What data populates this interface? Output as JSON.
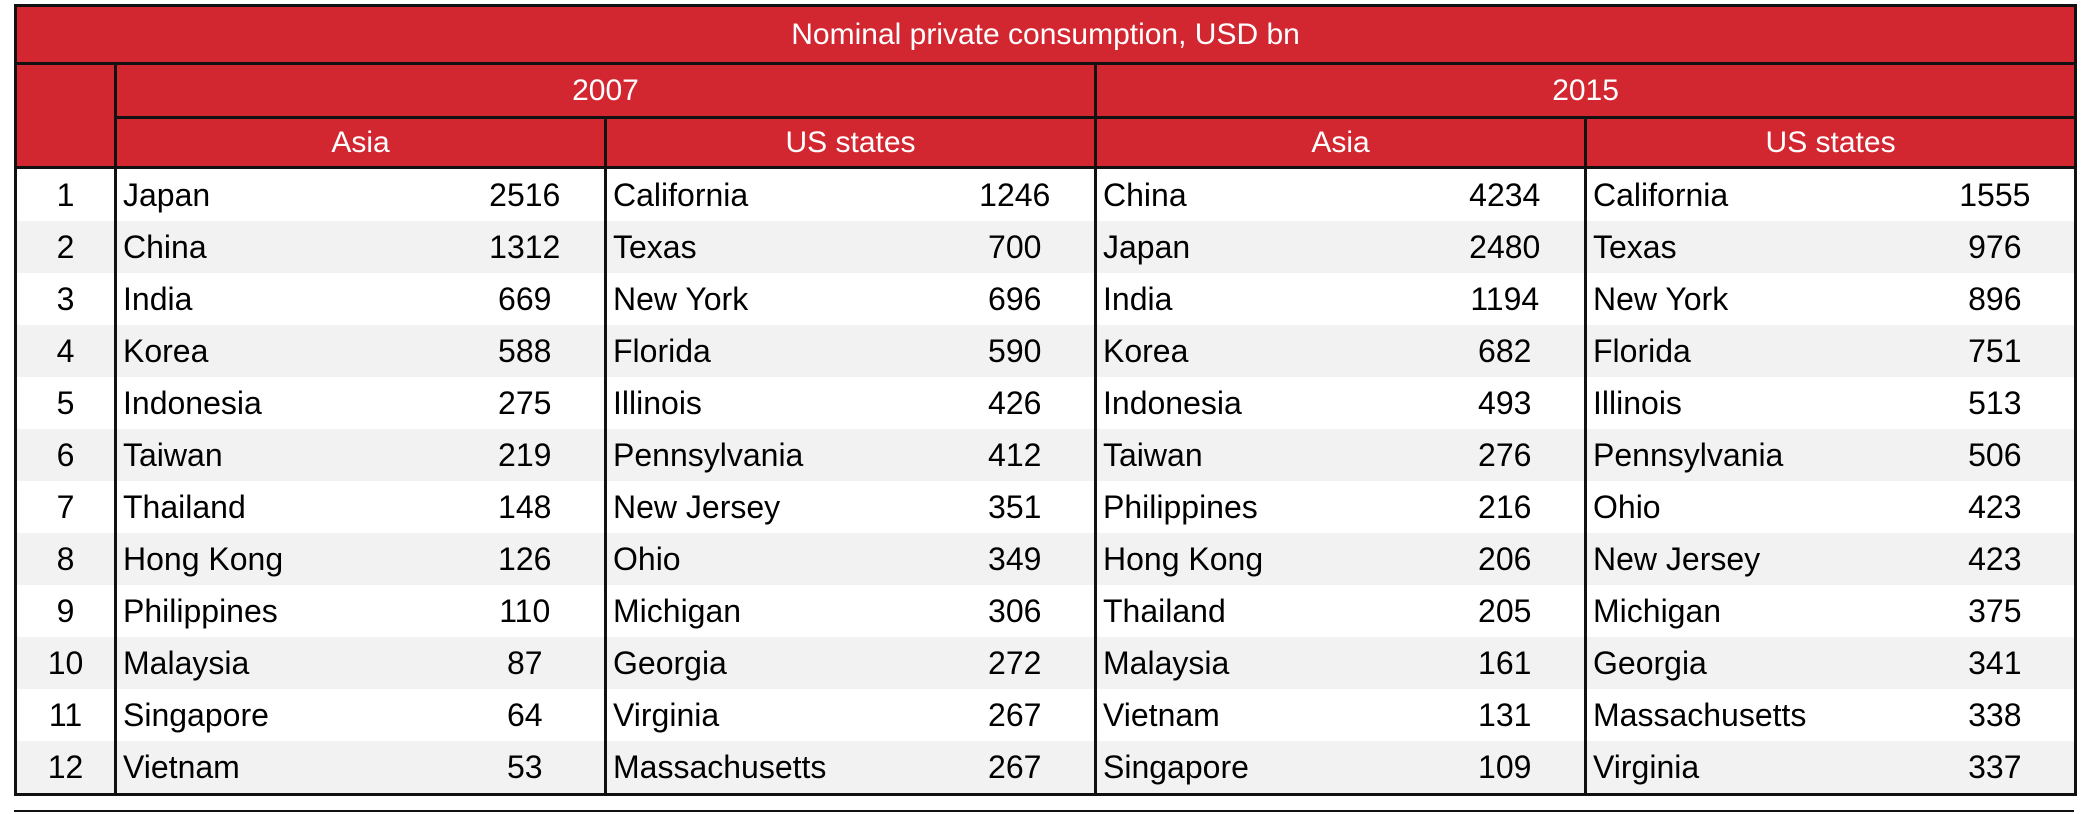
{
  "chart_data": {
    "type": "table",
    "title": "Nominal private consumption, USD bn",
    "years": [
      "2007",
      "2015"
    ],
    "groups": [
      "Asia",
      "US states",
      "Asia",
      "US states"
    ],
    "ranks": [
      "1",
      "2",
      "3",
      "4",
      "5",
      "6",
      "7",
      "8",
      "9",
      "10",
      "11",
      "12"
    ],
    "columns": [
      {
        "year": "2007",
        "group": "Asia",
        "rows": [
          {
            "name": "Japan",
            "value": "2516"
          },
          {
            "name": "China",
            "value": "1312"
          },
          {
            "name": "India",
            "value": "669"
          },
          {
            "name": "Korea",
            "value": "588"
          },
          {
            "name": "Indonesia",
            "value": "275"
          },
          {
            "name": "Taiwan",
            "value": "219"
          },
          {
            "name": "Thailand",
            "value": "148"
          },
          {
            "name": "Hong Kong",
            "value": "126"
          },
          {
            "name": "Philippines",
            "value": "110"
          },
          {
            "name": "Malaysia",
            "value": "87"
          },
          {
            "name": "Singapore",
            "value": "64"
          },
          {
            "name": "Vietnam",
            "value": "53"
          }
        ]
      },
      {
        "year": "2007",
        "group": "US states",
        "rows": [
          {
            "name": "California",
            "value": "1246"
          },
          {
            "name": "Texas",
            "value": "700"
          },
          {
            "name": "New York",
            "value": "696"
          },
          {
            "name": "Florida",
            "value": "590"
          },
          {
            "name": "Illinois",
            "value": "426"
          },
          {
            "name": "Pennsylvania",
            "value": "412"
          },
          {
            "name": "New Jersey",
            "value": "351"
          },
          {
            "name": "Ohio",
            "value": "349"
          },
          {
            "name": "Michigan",
            "value": "306"
          },
          {
            "name": "Georgia",
            "value": "272"
          },
          {
            "name": "Virginia",
            "value": "267"
          },
          {
            "name": "Massachusetts",
            "value": "267"
          }
        ]
      },
      {
        "year": "2015",
        "group": "Asia",
        "rows": [
          {
            "name": "China",
            "value": "4234"
          },
          {
            "name": "Japan",
            "value": "2480"
          },
          {
            "name": "India",
            "value": "1194"
          },
          {
            "name": "Korea",
            "value": "682"
          },
          {
            "name": "Indonesia",
            "value": "493"
          },
          {
            "name": "Taiwan",
            "value": "276"
          },
          {
            "name": "Philippines",
            "value": "216"
          },
          {
            "name": "Hong Kong",
            "value": "206"
          },
          {
            "name": "Thailand",
            "value": "205"
          },
          {
            "name": "Malaysia",
            "value": "161"
          },
          {
            "name": "Vietnam",
            "value": "131"
          },
          {
            "name": "Singapore",
            "value": "109"
          }
        ]
      },
      {
        "year": "2015",
        "group": "US states",
        "rows": [
          {
            "name": "California",
            "value": "1555"
          },
          {
            "name": "Texas",
            "value": "976"
          },
          {
            "name": "New York",
            "value": "896"
          },
          {
            "name": "Florida",
            "value": "751"
          },
          {
            "name": "Illinois",
            "value": "513"
          },
          {
            "name": "Pennsylvania",
            "value": "506"
          },
          {
            "name": "Ohio",
            "value": "423"
          },
          {
            "name": "New Jersey",
            "value": "423"
          },
          {
            "name": "Michigan",
            "value": "375"
          },
          {
            "name": "Georgia",
            "value": "341"
          },
          {
            "name": "Massachusetts",
            "value": "338"
          },
          {
            "name": "Virginia",
            "value": "337"
          }
        ]
      }
    ]
  },
  "colors": {
    "header_red": "#d22630",
    "header_text": "#ffffff",
    "band_gray": "#f2f2f2",
    "rule": "#111111"
  }
}
